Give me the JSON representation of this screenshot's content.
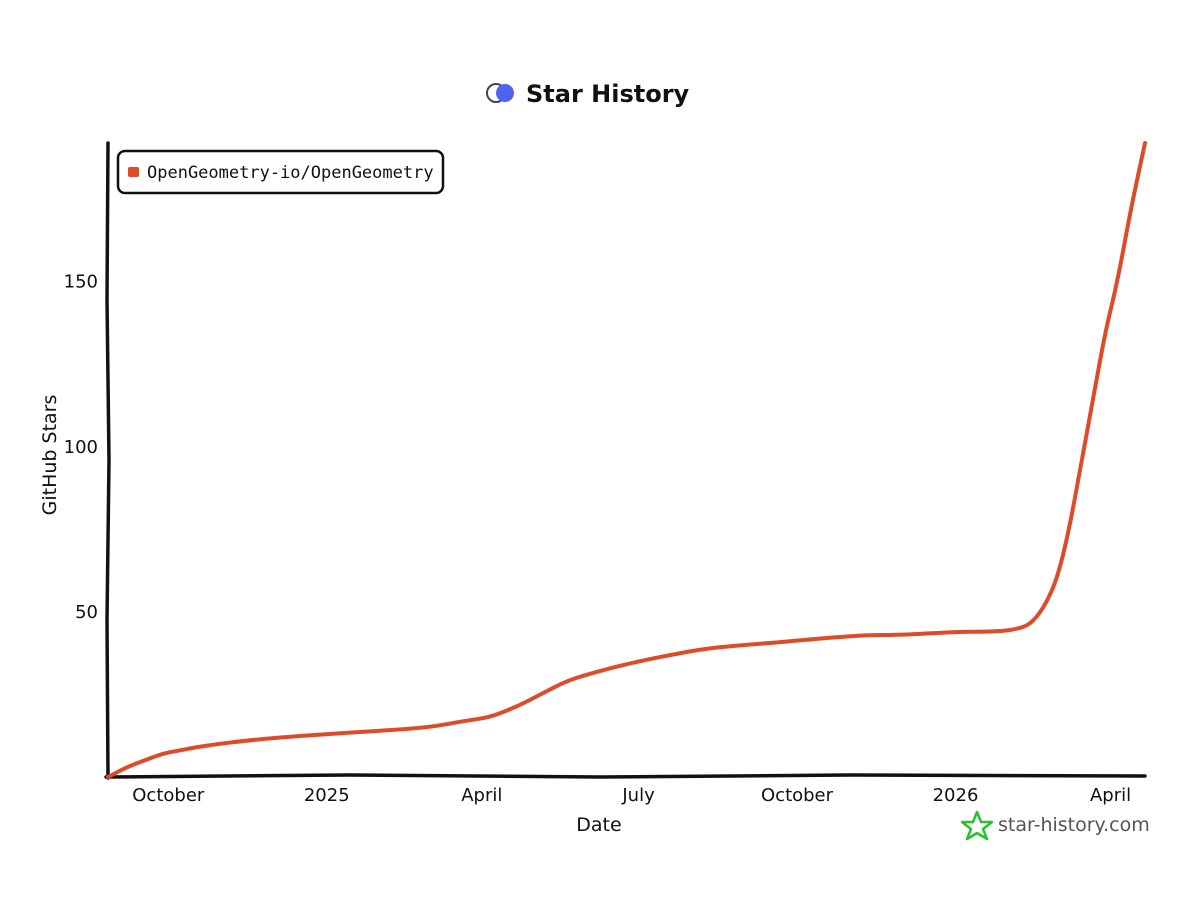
{
  "chart_data": {
    "type": "line",
    "title": "Star History",
    "xlabel": "Date",
    "ylabel": "GitHub Stars",
    "x_tick_labels": [
      "October",
      "2025",
      "April",
      "July",
      "October",
      "2026",
      "April"
    ],
    "x_tick_dates": [
      "2024-10-01",
      "2025-01-01",
      "2025-04-01",
      "2025-07-01",
      "2025-10-01",
      "2026-01-01",
      "2026-04-01"
    ],
    "xlim": [
      "2024-08-27",
      "2026-04-21"
    ],
    "y_ticks": [
      50,
      100,
      150
    ],
    "ylim": [
      0,
      192
    ],
    "grid": false,
    "legend_position": "top-left",
    "series": [
      {
        "name": "OpenGeometry-io/OpenGeometry",
        "color": "#dd4b2b",
        "points": [
          {
            "x": "2024-08-27",
            "y": 0
          },
          {
            "x": "2024-09-07",
            "y": 3
          },
          {
            "x": "2024-09-17",
            "y": 5
          },
          {
            "x": "2024-09-27",
            "y": 7
          },
          {
            "x": "2024-10-07",
            "y": 8
          },
          {
            "x": "2024-10-17",
            "y": 9
          },
          {
            "x": "2024-10-30",
            "y": 10
          },
          {
            "x": "2024-11-15",
            "y": 11
          },
          {
            "x": "2024-12-05",
            "y": 12
          },
          {
            "x": "2025-01-01",
            "y": 13
          },
          {
            "x": "2025-02-01",
            "y": 14
          },
          {
            "x": "2025-03-01",
            "y": 15
          },
          {
            "x": "2025-03-22",
            "y": 17
          },
          {
            "x": "2025-04-05",
            "y": 18
          },
          {
            "x": "2025-04-20",
            "y": 21
          },
          {
            "x": "2025-05-05",
            "y": 25
          },
          {
            "x": "2025-05-20",
            "y": 29
          },
          {
            "x": "2025-06-01",
            "y": 31
          },
          {
            "x": "2025-06-15",
            "y": 33
          },
          {
            "x": "2025-07-01",
            "y": 35
          },
          {
            "x": "2025-07-20",
            "y": 37
          },
          {
            "x": "2025-08-10",
            "y": 39
          },
          {
            "x": "2025-09-01",
            "y": 40
          },
          {
            "x": "2025-09-25",
            "y": 41
          },
          {
            "x": "2025-10-15",
            "y": 42
          },
          {
            "x": "2025-11-10",
            "y": 43
          },
          {
            "x": "2025-12-01",
            "y": 43
          },
          {
            "x": "2026-01-01",
            "y": 44
          },
          {
            "x": "2026-01-25",
            "y": 44
          },
          {
            "x": "2026-02-08",
            "y": 45
          },
          {
            "x": "2026-02-15",
            "y": 47
          },
          {
            "x": "2026-02-22",
            "y": 52
          },
          {
            "x": "2026-03-01",
            "y": 60
          },
          {
            "x": "2026-03-08",
            "y": 75
          },
          {
            "x": "2026-03-15",
            "y": 95
          },
          {
            "x": "2026-03-22",
            "y": 115
          },
          {
            "x": "2026-03-29",
            "y": 135
          },
          {
            "x": "2026-04-05",
            "y": 150
          },
          {
            "x": "2026-04-12",
            "y": 170
          },
          {
            "x": "2026-04-21",
            "y": 192
          }
        ]
      }
    ]
  },
  "branding": {
    "text": "star-history.com",
    "icon": "star-icon",
    "icon_color": "#29c229"
  },
  "title_icon": {
    "name": "toggle-logo-icon",
    "color": "#4f62f0"
  }
}
